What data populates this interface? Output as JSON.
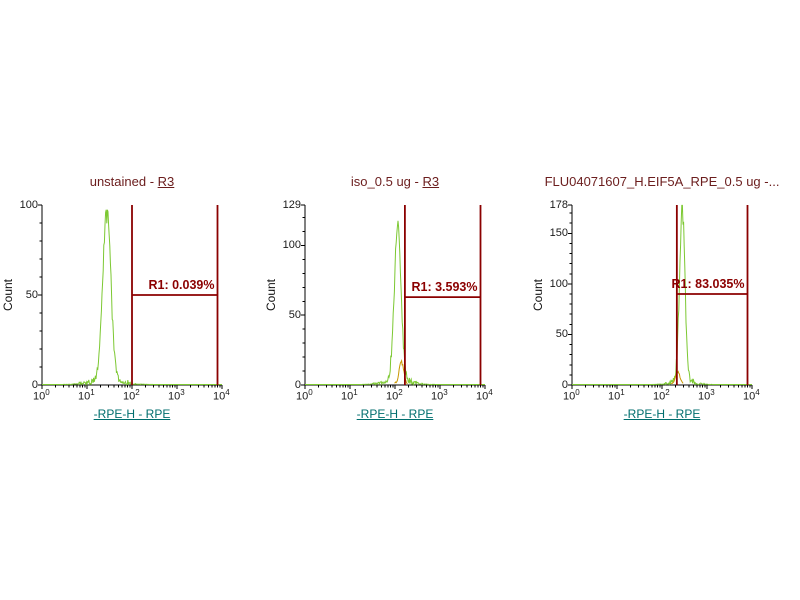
{
  "colors": {
    "background": "#ffffff",
    "curve_green": "#7cc832",
    "overlay_gold": "#c89600",
    "gate_red": "#8b0000",
    "title_maroon": "#6b1d1d",
    "axis_link_teal": "#006e6e",
    "axis_black": "#000000",
    "tick_text": "#1a1a1a"
  },
  "chart_data": [
    {
      "type": "histogram",
      "title": "unstained - R3",
      "title_prefix": "unstained - ",
      "title_link": "R3",
      "xlabel": "-RPE-H - RPE",
      "ylabel": "Count",
      "x_scale": "log10",
      "x_range_log10": [
        0,
        4
      ],
      "x_tick_base": "10",
      "x_tick_exponents": [
        "0",
        "1",
        "2",
        "3",
        "4"
      ],
      "ylim": [
        0,
        100
      ],
      "y_ticks": [
        0,
        50,
        100
      ],
      "y_minor_step": 10,
      "series": [
        {
          "name": "events",
          "color": "#7cc832",
          "baseline": true,
          "peak_center_log10": 1.44,
          "peak_sigma_log10": 0.09,
          "peak_height_counts": 93
        }
      ],
      "gate": {
        "name": "R1",
        "label": "R1: 0.039%",
        "percent": 0.039,
        "x1_log10": 2.0,
        "x2_log10": 3.9,
        "y_counts": 50
      }
    },
    {
      "type": "histogram",
      "title": "iso_0.5 ug - R3",
      "title_prefix": "iso_0.5 ug - ",
      "title_link": "R3",
      "xlabel": "-RPE-H - RPE",
      "ylabel": "Count",
      "x_scale": "log10",
      "x_range_log10": [
        0,
        4
      ],
      "x_tick_base": "10",
      "x_tick_exponents": [
        "0",
        "1",
        "2",
        "3",
        "4"
      ],
      "ylim": [
        0,
        129
      ],
      "y_ticks": [
        0,
        50,
        100,
        129
      ],
      "y_minor_step": 10,
      "series": [
        {
          "name": "events",
          "color": "#7cc832",
          "baseline": true,
          "peak_center_log10": 2.06,
          "peak_sigma_log10": 0.075,
          "peak_height_counts": 112
        },
        {
          "name": "overlay",
          "color": "#c89600",
          "baseline": false,
          "peak_center_log10": 2.14,
          "peak_sigma_log10": 0.05,
          "peak_height_counts": 16
        }
      ],
      "gate": {
        "name": "R1",
        "label": "R1: 3.593%",
        "percent": 3.593,
        "x1_log10": 2.22,
        "x2_log10": 3.9,
        "y_counts": 63
      }
    },
    {
      "type": "histogram",
      "title": "FLU04071607_H.EIF5A_RPE_0.5 ug -...",
      "title_prefix": "FLU04071607_H.EIF5A_RPE_0.5 ug -...",
      "title_link": "",
      "xlabel": "-RPE-H - RPE",
      "ylabel": "Count",
      "x_scale": "log10",
      "x_range_log10": [
        0,
        4
      ],
      "x_tick_base": "10",
      "x_tick_exponents": [
        "0",
        "1",
        "2",
        "3",
        "4"
      ],
      "ylim": [
        0,
        178
      ],
      "y_ticks": [
        0,
        50,
        100,
        150,
        178
      ],
      "y_minor_step": 10,
      "series": [
        {
          "name": "events",
          "color": "#7cc832",
          "baseline": true,
          "peak_center_log10": 2.45,
          "peak_sigma_log10": 0.06,
          "peak_height_counts": 168
        },
        {
          "name": "overlay",
          "color": "#c89600",
          "baseline": false,
          "peak_center_log10": 2.35,
          "peak_sigma_log10": 0.05,
          "peak_height_counts": 12
        }
      ],
      "gate": {
        "name": "R1",
        "label": "R1: 83.035%",
        "percent": 83.035,
        "x1_log10": 2.33,
        "x2_log10": 3.9,
        "y_counts": 90
      }
    }
  ]
}
